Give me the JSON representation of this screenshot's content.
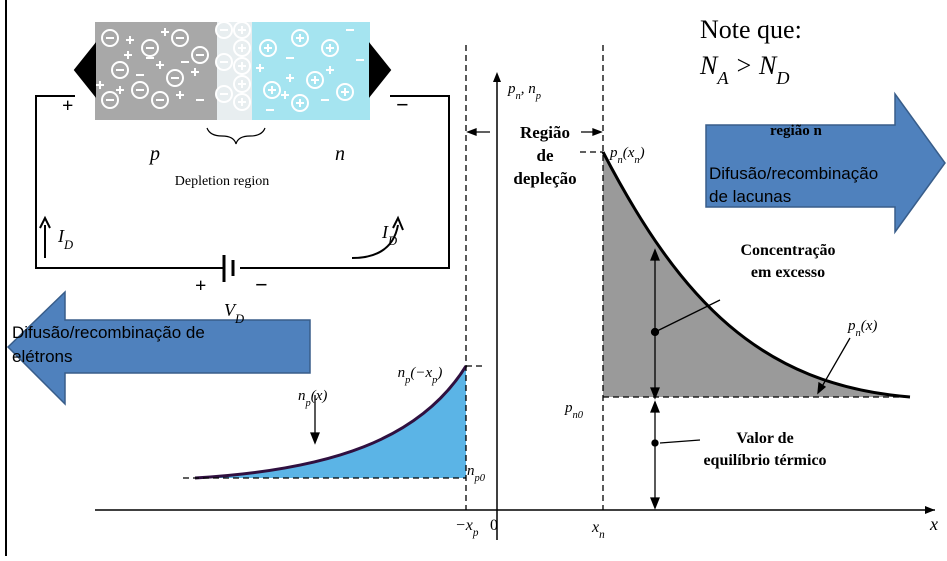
{
  "note": {
    "title": "Note que:",
    "formula": [
      "N",
      {
        "sub": "A"
      },
      " > N",
      {
        "sub": "D"
      }
    ]
  },
  "circuit": {
    "p": "p",
    "n": "n",
    "depletion": "Depletion region",
    "plus": "+",
    "minus": "−",
    "id_left": [
      "I",
      {
        "sub": "D"
      }
    ],
    "id_right": [
      "I",
      {
        "sub": "D"
      }
    ],
    "battery_plus": "+",
    "battery_minus": "−",
    "voltage": [
      "V",
      {
        "sub": "D"
      }
    ]
  },
  "plot": {
    "axis_y": [
      "p",
      {
        "sub": "n"
      },
      ", n",
      {
        "sub": "p"
      }
    ],
    "axis_x": "x",
    "origin": "0",
    "neg_xp": [
      "−x",
      {
        "sub": "p"
      }
    ],
    "xn": [
      "x",
      {
        "sub": "n"
      }
    ],
    "pn_xn": [
      "p",
      {
        "sub": "n"
      },
      "(x",
      {
        "sub": "n"
      },
      ")"
    ],
    "np_xp": [
      "n",
      {
        "sub": "p"
      },
      "(−x",
      {
        "sub": "p"
      },
      ")"
    ],
    "np_x": [
      "n",
      {
        "sub": "p"
      },
      "(x)"
    ],
    "pn_x": [
      "p",
      {
        "sub": "n"
      },
      "(x)"
    ],
    "pn0": [
      "p",
      {
        "sub": "n0"
      }
    ],
    "np0": [
      "n",
      {
        "sub": "p0"
      }
    ],
    "depletion": [
      "Região",
      "de",
      "depleção"
    ],
    "region_n": "região n",
    "excess": [
      "Concentração",
      "em excesso"
    ],
    "equilibrium": [
      "Valor de",
      "equilíbrio térmico"
    ]
  },
  "arrows": {
    "right": [
      "Difusão/recombinação",
      "de lacunas"
    ],
    "left": [
      "Difusão/recombinação de",
      "elétrons"
    ]
  }
}
